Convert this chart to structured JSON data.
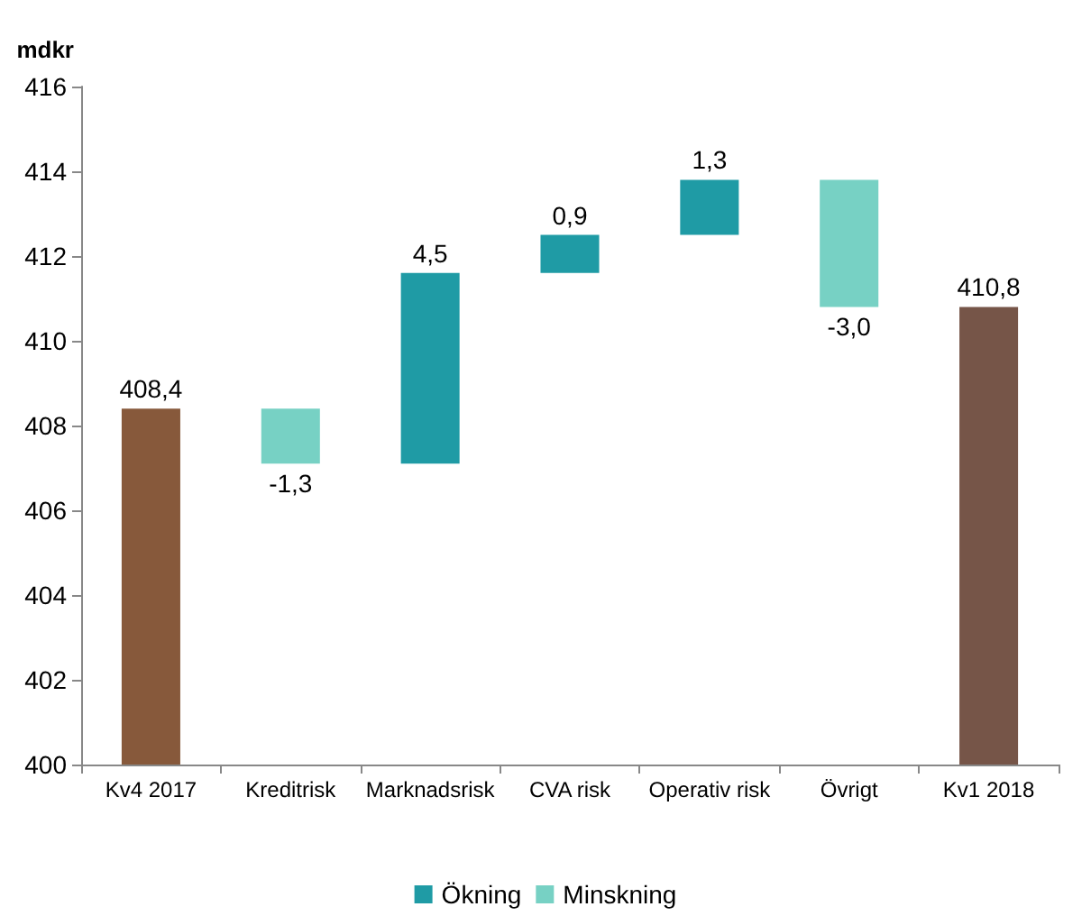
{
  "chart_data": {
    "type": "bar",
    "ylabel": "mdkr",
    "categories": [
      "Kv4 2017",
      "Kreditrisk",
      "Marknadsrisk",
      "CVA risk",
      "Operativ risk",
      "Övrigt",
      "Kv1 2018"
    ],
    "series": [
      {
        "name": "Ökning",
        "color": "#1f9ba5",
        "base": [
          null,
          null,
          407.1,
          411.6,
          412.5,
          null,
          null
        ],
        "values": [
          null,
          null,
          4.5,
          0.9,
          1.3,
          null,
          null
        ],
        "value_labels": [
          null,
          null,
          "4,5",
          "0,9",
          "1,3",
          null,
          null
        ]
      },
      {
        "name": "Minskning",
        "color": "#77d1c4",
        "base": [
          null,
          408.4,
          null,
          null,
          null,
          413.8,
          null
        ],
        "values": [
          null,
          -1.3,
          null,
          null,
          null,
          -3.0,
          null
        ],
        "value_labels": [
          null,
          "-1,3",
          null,
          null,
          null,
          "-3,0",
          null
        ]
      },
      {
        "colors": [
          "#87593b",
          null,
          null,
          null,
          null,
          null,
          "#765548"
        ],
        "values": [
          408.4,
          null,
          null,
          null,
          null,
          null,
          410.8
        ],
        "value_labels": [
          "408,4",
          null,
          null,
          null,
          null,
          null,
          "410,8"
        ]
      }
    ],
    "ylim": [
      400,
      416
    ],
    "yticks": [
      400,
      402,
      404,
      406,
      408,
      410,
      412,
      414,
      416
    ],
    "legend": "bottom"
  }
}
